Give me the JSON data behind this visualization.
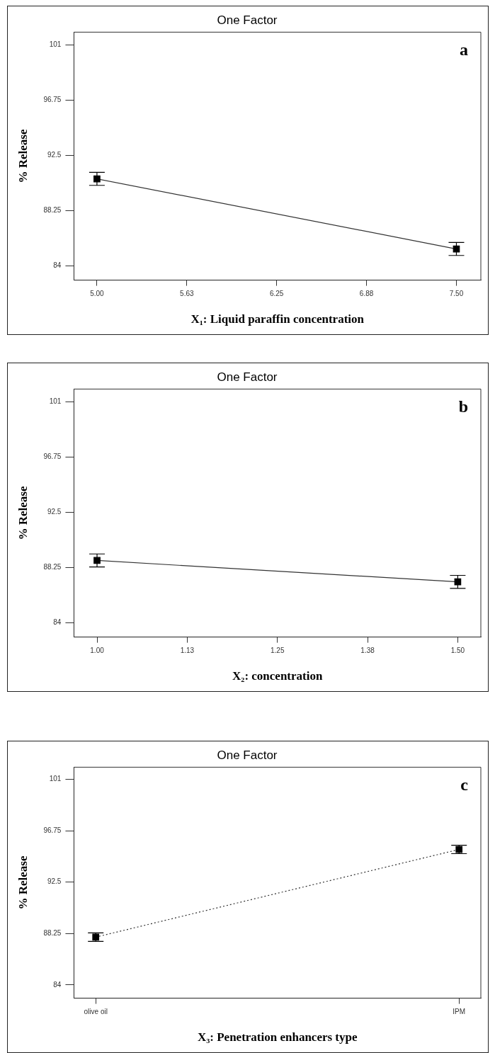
{
  "chart_data": [
    {
      "type": "line",
      "title": "One Factor",
      "xlabel": "X₁: Liquid paraffin concentration",
      "ylabel": "% Release",
      "annotations": [
        "a"
      ],
      "x": [
        5.0,
        7.5
      ],
      "values": [
        90.7,
        85.3
      ],
      "errors": [
        0.5,
        0.5
      ],
      "color": "#333333",
      "marker": "square",
      "line_style": "solid",
      "xlim": [
        4.84,
        7.67
      ],
      "xticks": [
        {
          "value": 5,
          "label": "5.00"
        },
        {
          "value": 5.625,
          "label": "5.63"
        },
        {
          "value": 6.25,
          "label": "6.25"
        },
        {
          "value": 6.875,
          "label": "6.88"
        },
        {
          "value": 7.5,
          "label": "7.50"
        }
      ],
      "ylim": [
        82.9,
        102
      ],
      "yticks": [
        101,
        96.75,
        92.5,
        88.25,
        84
      ]
    },
    {
      "type": "line",
      "title": "One Factor",
      "xlabel": "X₂: concentration",
      "ylabel": "% Release",
      "annotations": [
        "b"
      ],
      "x": [
        1.0,
        1.5
      ],
      "values": [
        88.8,
        87.15
      ],
      "errors": [
        0.5,
        0.5
      ],
      "color": "#333333",
      "marker": "square",
      "line_style": "solid",
      "xlim": [
        0.968,
        1.532
      ],
      "xticks": [
        {
          "value": 1,
          "label": "1.00"
        },
        {
          "value": 1.125,
          "label": "1.13"
        },
        {
          "value": 1.25,
          "label": "1.25"
        },
        {
          "value": 1.375,
          "label": "1.38"
        },
        {
          "value": 1.5,
          "label": "1.50"
        }
      ],
      "ylim": [
        82.9,
        102
      ],
      "yticks": [
        101,
        96.75,
        92.5,
        88.25,
        84
      ]
    },
    {
      "type": "line",
      "title": "One Factor",
      "xlabel": "X₃: Penetration enhancers type",
      "ylabel": "% Release",
      "annotations": [
        "c"
      ],
      "categories": [
        "olive oil",
        "IPM"
      ],
      "values": [
        87.95,
        95.2
      ],
      "errors": [
        0.35,
        0.35
      ],
      "color": "#333333",
      "marker": "square",
      "line_style": "dotted",
      "ylim": [
        82.9,
        102
      ],
      "yticks": [
        101,
        96.75,
        92.5,
        88.25,
        84
      ]
    }
  ]
}
